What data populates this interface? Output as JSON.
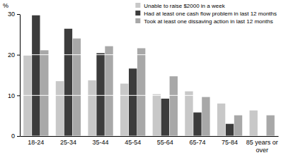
{
  "chart_data": {
    "type": "bar",
    "ylabel": "%",
    "categories": [
      "18-24",
      "25-34",
      "35-44",
      "45-54",
      "55-64",
      "65-74",
      "75-84",
      "85 years or over"
    ],
    "series": [
      {
        "name": "Unable to raise $2000 in a week",
        "color": "#c8c8c8",
        "values": [
          19.8,
          13.5,
          13.7,
          12.9,
          10.3,
          11.0,
          8.0,
          6.3
        ]
      },
      {
        "name": "Had at least one cash flow problem in last 12 months",
        "color": "#3c3c3c",
        "values": [
          29.7,
          26.4,
          20.4,
          16.6,
          9.2,
          5.8,
          3.0,
          null
        ]
      },
      {
        "name": "Took at least one dissaving action in last 12 months",
        "color": "#a8a8a8",
        "values": [
          21.1,
          24.0,
          22.1,
          21.6,
          14.7,
          9.6,
          5.1,
          5.1
        ]
      }
    ],
    "ylim": [
      0,
      30
    ],
    "yticks": [
      0,
      10,
      20,
      30
    ],
    "grid": true,
    "legend": "top-right"
  }
}
